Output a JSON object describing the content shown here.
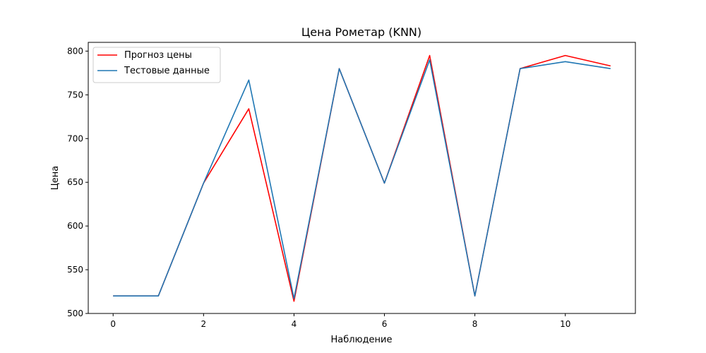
{
  "chart_data": {
    "type": "line",
    "title": "Цена Рометар (KNN)",
    "xlabel": "Наблюдение",
    "ylabel": "Цена",
    "x": [
      0,
      1,
      2,
      3,
      4,
      5,
      6,
      7,
      8,
      9,
      10,
      11
    ],
    "xlim": [
      -0.55,
      11.55
    ],
    "ylim": [
      500,
      810
    ],
    "xticks": [
      0,
      2,
      4,
      6,
      8,
      10
    ],
    "yticks": [
      500,
      550,
      600,
      650,
      700,
      750,
      800
    ],
    "grid": false,
    "legend_position": "top-left",
    "series": [
      {
        "name": "Прогноз цены",
        "color": "#ff0000",
        "values": [
          520,
          520,
          649,
          734,
          514,
          780,
          649,
          795,
          520,
          780,
          795,
          783
        ]
      },
      {
        "name": "Тестовые данные",
        "color": "#1f77b4",
        "values": [
          520,
          520,
          649,
          767,
          517,
          780,
          649,
          790,
          520,
          780,
          788,
          780
        ]
      }
    ]
  }
}
